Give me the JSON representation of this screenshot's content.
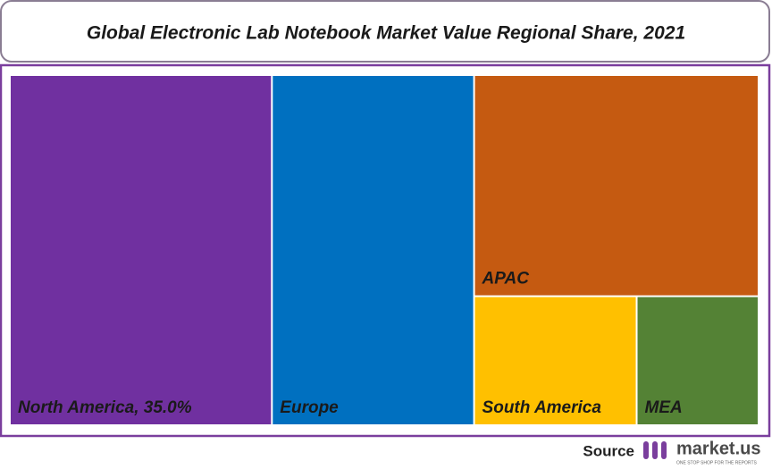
{
  "chart_data": {
    "type": "treemap",
    "title": "Global Electronic Lab Notebook Market Value Regional Share, 2021",
    "labels": [
      "North America, 35.0%",
      "Europe",
      "APAC",
      "South America",
      "MEA"
    ],
    "values": [
      35,
      27,
      24,
      8,
      6
    ],
    "colors": [
      "#7030a0",
      "#0070c0",
      "#c55a11",
      "#ffc000",
      "#548235"
    ]
  },
  "footer": {
    "source": "Source",
    "brand": "market.us",
    "tagline": "ONE STOP SHOP FOR THE REPORTS"
  }
}
